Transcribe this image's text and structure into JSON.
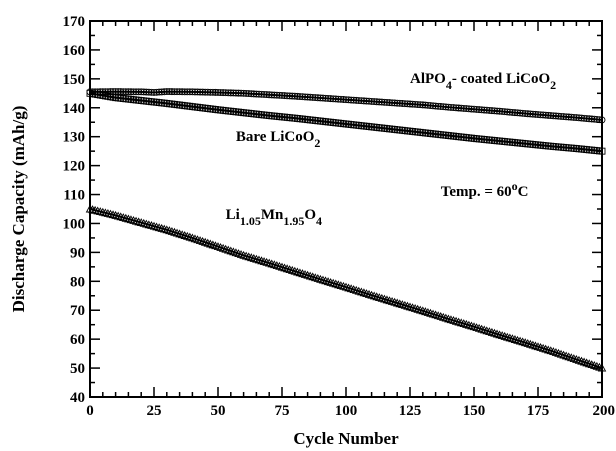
{
  "chart_data": {
    "type": "scatter",
    "title": "",
    "xlabel": "Cycle Number",
    "ylabel": "Discharge Capacity (mAh/g)",
    "xlim": [
      0,
      200
    ],
    "ylim": [
      40,
      170
    ],
    "x_ticks": [
      "0",
      "25",
      "50",
      "75",
      "100",
      "125",
      "150",
      "175",
      "200"
    ],
    "y_ticks": [
      "40",
      "50",
      "60",
      "70",
      "80",
      "90",
      "100",
      "110",
      "120",
      "130",
      "140",
      "150",
      "160",
      "170"
    ],
    "grid": false,
    "legend": "none",
    "series": [
      {
        "marker": "circle",
        "x": [
          0,
          10,
          20,
          25,
          30,
          40,
          50,
          60,
          70,
          80,
          90,
          100,
          110,
          120,
          130,
          140,
          150,
          160,
          170,
          180,
          190,
          200
        ],
        "y": [
          145.5,
          145.6,
          145.5,
          145.3,
          145.6,
          145.5,
          145.3,
          145.0,
          144.5,
          144.0,
          143.4,
          142.8,
          142.2,
          141.6,
          141.0,
          140.2,
          139.5,
          138.8,
          138.0,
          137.3,
          136.6,
          135.8
        ]
      },
      {
        "marker": "square",
        "x": [
          0,
          10,
          20,
          30,
          40,
          50,
          60,
          70,
          80,
          90,
          100,
          110,
          120,
          130,
          140,
          150,
          160,
          170,
          180,
          190,
          200
        ],
        "y": [
          145.0,
          143.5,
          142.5,
          141.5,
          140.4,
          139.3,
          138.3,
          137.3,
          136.4,
          135.4,
          134.4,
          133.4,
          132.4,
          131.4,
          130.4,
          129.4,
          128.5,
          127.6,
          126.7,
          125.9,
          125.0
        ]
      },
      {
        "marker": "triangle",
        "x": [
          0,
          10,
          20,
          30,
          40,
          50,
          60,
          70,
          80,
          90,
          100,
          110,
          120,
          130,
          140,
          150,
          160,
          170,
          180,
          190,
          200
        ],
        "y": [
          105.0,
          102.8,
          100.3,
          97.8,
          95.0,
          92.0,
          89.0,
          86.3,
          83.5,
          80.7,
          78.0,
          75.2,
          72.5,
          69.8,
          67.0,
          64.3,
          61.5,
          58.8,
          56.0,
          53.0,
          50.0
        ]
      }
    ],
    "annotations": [
      {
        "parts": [
          {
            "text": "AlPO",
            "shift": 0
          },
          {
            "text": "4",
            "shift": 1
          },
          {
            "text": "- coated LiCoO",
            "shift": 0
          },
          {
            "text": "2",
            "shift": 1
          }
        ],
        "x": 125,
        "y": 148.5
      },
      {
        "parts": [
          {
            "text": "Bare LiCoO",
            "shift": 0
          },
          {
            "text": "2",
            "shift": 1
          }
        ],
        "x": 57,
        "y": 128.5
      },
      {
        "parts": [
          {
            "text": "Temp. = 60",
            "shift": 0
          },
          {
            "text": "o",
            "shift": -1
          },
          {
            "text": "C",
            "shift": 0
          }
        ],
        "x": 137,
        "y": 109.5
      },
      {
        "parts": [
          {
            "text": "Li",
            "shift": 0
          },
          {
            "text": "1.05",
            "shift": 1
          },
          {
            "text": "Mn",
            "shift": 0
          },
          {
            "text": "1.95",
            "shift": 1
          },
          {
            "text": "O",
            "shift": 0
          },
          {
            "text": "4",
            "shift": 1
          }
        ],
        "x": 53,
        "y": 101.5
      }
    ]
  }
}
